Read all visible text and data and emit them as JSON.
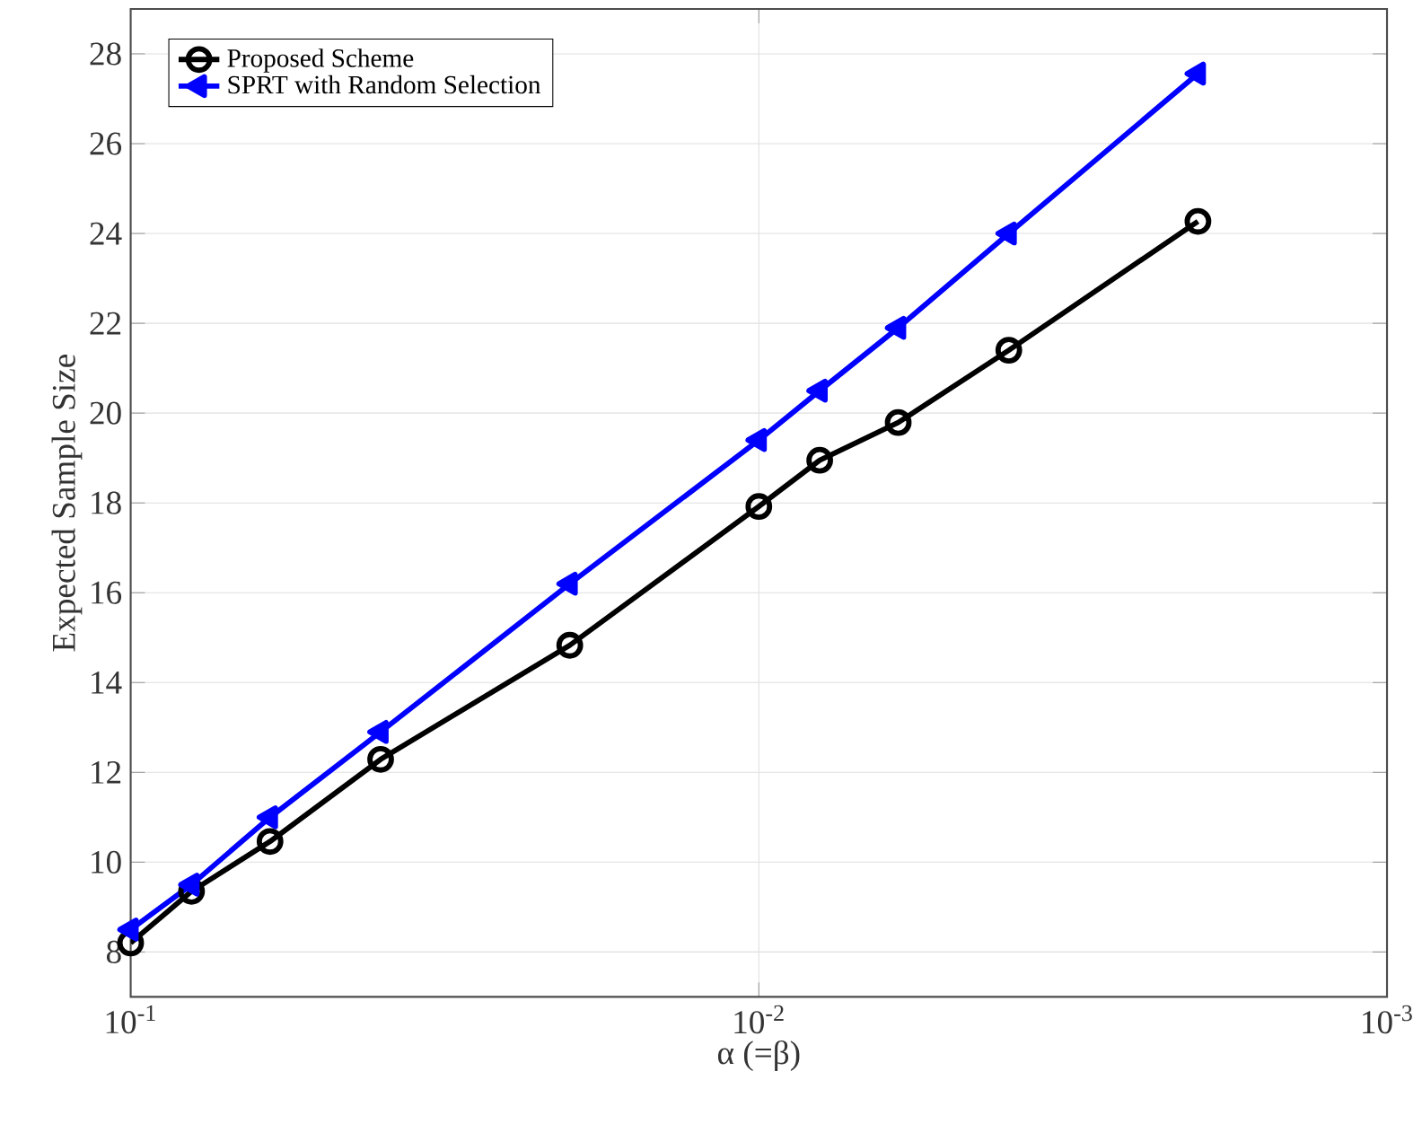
{
  "chart_data": {
    "type": "line",
    "xlabel": "α (=β)",
    "ylabel": "Expected Sample Size",
    "x": [
      0.1,
      0.08,
      0.06,
      0.04,
      0.02,
      0.01,
      0.008,
      0.006,
      0.004,
      0.002
    ],
    "series": [
      {
        "name": "Proposed Scheme",
        "color": "#000000",
        "marker": "circle",
        "values": [
          8.2,
          9.35,
          10.46,
          12.29,
          14.83,
          17.92,
          18.95,
          19.79,
          21.4,
          24.27
        ]
      },
      {
        "name": "SPRT with Random Selection",
        "color": "#0000ff",
        "marker": "triangle",
        "values": [
          8.5,
          9.5,
          11.0,
          12.9,
          16.2,
          19.4,
          20.5,
          21.9,
          24.0,
          27.56
        ]
      }
    ],
    "log": "x",
    "xlim": [
      0.1,
      0.001
    ],
    "ylim": [
      7,
      29
    ],
    "xticks": [
      {
        "value": 0.1,
        "label": "10$^{-1}$"
      },
      {
        "value": 0.01,
        "label": "10$^{-2}$"
      },
      {
        "value": 0.001,
        "label": "10$^{-3}$"
      }
    ],
    "yticks": [
      8,
      10,
      12,
      14,
      16,
      18,
      20,
      22,
      24,
      26,
      28
    ],
    "grid": true,
    "legend": "top left",
    "line_style": "solid"
  }
}
